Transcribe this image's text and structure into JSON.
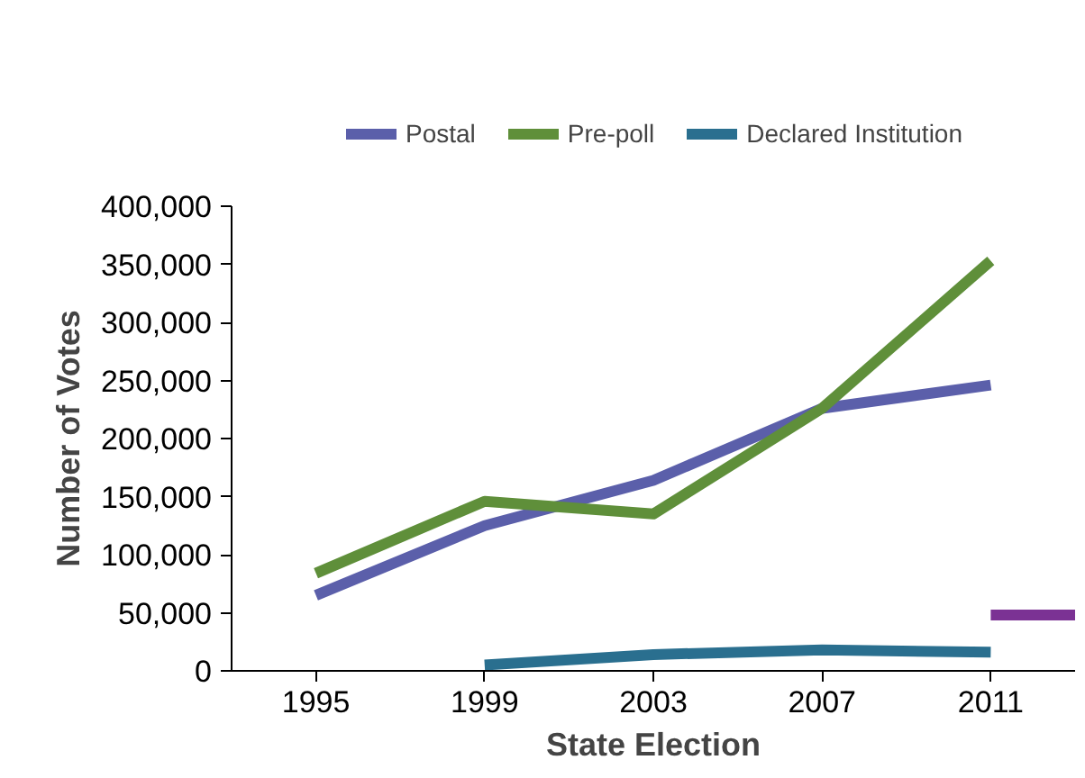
{
  "chart_data": {
    "type": "line",
    "xlabel": "State Election",
    "ylabel": "Number of Votes",
    "x": [
      1995,
      1999,
      2003,
      2007,
      2011
    ],
    "series": [
      {
        "name": "Postal",
        "color": "#5b5faa",
        "values": [
          65000,
          125000,
          164000,
          226000,
          246000
        ]
      },
      {
        "name": "Pre-poll",
        "color": "#5f8f3a",
        "values": [
          84000,
          146000,
          135000,
          226000,
          353000
        ]
      },
      {
        "color": "#7b3294",
        "x": [
          2011,
          2013
        ],
        "values": [
          48000,
          48000
        ]
      },
      {
        "name": "Declared Institution",
        "color": "#2a6f8f",
        "x": [
          1999,
          2003,
          2007,
          2011
        ],
        "values": [
          5000,
          14000,
          18000,
          16000
        ]
      }
    ],
    "xlim": [
      1993,
      2013
    ],
    "xticks": [
      1995,
      1999,
      2003,
      2007,
      2011
    ],
    "ylim": [
      0,
      400000
    ],
    "yticks": [
      {
        "value": 0,
        "label": "0"
      },
      {
        "value": 50000,
        "label": "50,000"
      },
      {
        "value": 100000,
        "label": "100,000"
      },
      {
        "value": 150000,
        "label": "150,000"
      },
      {
        "value": 200000,
        "label": "200,000"
      },
      {
        "value": 250000,
        "label": "250,000"
      },
      {
        "value": 300000,
        "label": "300,000"
      },
      {
        "value": 350000,
        "label": "350,000"
      },
      {
        "value": 400000,
        "label": "400,000"
      }
    ],
    "grid": false,
    "legend": "top",
    "marker": "none",
    "line_style": "solid"
  }
}
